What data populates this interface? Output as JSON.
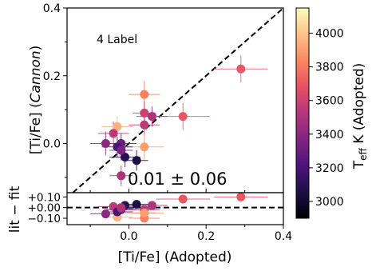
{
  "chart_data": {
    "type": "scatter",
    "x_tick_labels": [
      "0.0",
      "0.2",
      "0.4"
    ],
    "x_ticks": [
      0.0,
      0.2,
      0.4
    ],
    "xlabel": "[Ti/Fe] (Adopted)",
    "xlim": [
      -0.16,
      0.4
    ],
    "top_panel": {
      "ylabel_main": "[Ti/Fe] (",
      "ylabel_italic": "Cannon",
      "ylabel_tail": ")",
      "ylim": [
        -0.145,
        0.4
      ],
      "y_ticks": [
        0.0,
        0.2,
        0.4
      ],
      "y_tick_labels": [
        "0.0",
        "0.2",
        "0.4"
      ],
      "label_text": "4 Label",
      "stat_text": "0.01 ± 0.06",
      "one_to_one_line": true
    },
    "bottom_panel": {
      "ylabel": "lit − fit",
      "ylim": [
        -0.16,
        0.14
      ],
      "y_ticks": [
        0.1,
        0.0,
        -0.1
      ],
      "y_tick_labels": [
        "+0.10",
        "+0.00",
        "−0.10"
      ],
      "zero_line": true
    },
    "colorbar": {
      "label_prefix": "T",
      "label_sub": "eff",
      "label_suffix": " K (Adopted)",
      "range": [
        2900,
        4150
      ],
      "ticks": [
        3000,
        3200,
        3400,
        3600,
        3800,
        4000
      ],
      "tick_labels": [
        "3000",
        "3200",
        "3400",
        "3600",
        "3800",
        "4000"
      ],
      "colormap": "magma",
      "stops": [
        "#000004",
        "#1c1044",
        "#4f127b",
        "#812581",
        "#b5367a",
        "#e55064",
        "#fb8761",
        "#fec287",
        "#fcfdbf"
      ]
    },
    "points": [
      {
        "x": 0.29,
        "y": 0.22,
        "xerr": 0.07,
        "yerr": 0.04,
        "resid": 0.1,
        "teff": 3700
      },
      {
        "x": 0.14,
        "y": 0.08,
        "xerr": 0.07,
        "yerr": 0.04,
        "resid": 0.08,
        "teff": 3700
      },
      {
        "x": 0.04,
        "y": 0.145,
        "xerr": 0.04,
        "yerr": 0.04,
        "resid": -0.1,
        "teff": 3820
      },
      {
        "x": -0.03,
        "y": 0.05,
        "xerr": 0.04,
        "yerr": 0.03,
        "resid": -0.09,
        "teff": 3950
      },
      {
        "x": 0.04,
        "y": 0.09,
        "xerr": 0.03,
        "yerr": 0.035,
        "resid": -0.05,
        "teff": 3600
      },
      {
        "x": 0.06,
        "y": 0.08,
        "xerr": 0.04,
        "yerr": 0.03,
        "resid": 0.02,
        "teff": 3500
      },
      {
        "x": 0.04,
        "y": 0.055,
        "xerr": 0.04,
        "yerr": 0.03,
        "resid": -0.02,
        "teff": 3550
      },
      {
        "x": -0.04,
        "y": 0.03,
        "xerr": 0.04,
        "yerr": 0.035,
        "resid": 0.01,
        "teff": 3550
      },
      {
        "x": -0.02,
        "y": 0.0,
        "xerr": 0.04,
        "yerr": 0.03,
        "resid": -0.02,
        "teff": 3300
      },
      {
        "x": 0.04,
        "y": -0.01,
        "xerr": 0.05,
        "yerr": 0.04,
        "resid": -0.05,
        "teff": 3900
      },
      {
        "x": -0.03,
        "y": -0.01,
        "xerr": 0.04,
        "yerr": 0.03,
        "resid": -0.04,
        "teff": 3200
      },
      {
        "x": -0.01,
        "y": -0.04,
        "xerr": 0.04,
        "yerr": 0.03,
        "resid": 0.02,
        "teff": 3100
      },
      {
        "x": -0.02,
        "y": -0.02,
        "xerr": 0.03,
        "yerr": 0.03,
        "resid": -0.01,
        "teff": 3350
      },
      {
        "x": -0.06,
        "y": 0.0,
        "xerr": 0.04,
        "yerr": 0.035,
        "resid": -0.06,
        "teff": 3400
      },
      {
        "x": 0.02,
        "y": -0.05,
        "xerr": 0.03,
        "yerr": 0.03,
        "resid": 0.03,
        "teff": 3050
      },
      {
        "x": -0.02,
        "y": -0.095,
        "xerr": 0.03,
        "yerr": 0.03,
        "resid": 0.0,
        "teff": 3500
      }
    ]
  }
}
